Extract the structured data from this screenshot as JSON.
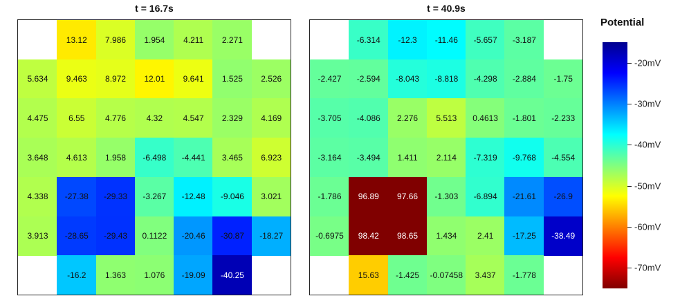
{
  "chart_data": [
    {
      "type": "heatmap",
      "title": "t = 16.7s",
      "rows": 7,
      "cols": 7,
      "values": [
        [
          null,
          13.12,
          7.986,
          1.954,
          4.211,
          2.271,
          null
        ],
        [
          5.634,
          9.463,
          8.972,
          12.01,
          9.641,
          1.525,
          2.526
        ],
        [
          4.475,
          6.55,
          4.776,
          4.32,
          4.547,
          2.329,
          4.169
        ],
        [
          3.648,
          4.613,
          1.958,
          -6.498,
          -4.441,
          3.465,
          6.923
        ],
        [
          4.338,
          -27.38,
          -29.33,
          -3.267,
          -12.48,
          -9.046,
          3.021
        ],
        [
          3.913,
          -28.65,
          -29.43,
          0.1122,
          -20.46,
          -30.87,
          -18.27
        ],
        [
          null,
          -16.2,
          1.363,
          1.076,
          -19.09,
          -40.25,
          null
        ]
      ],
      "labels": [
        [
          "",
          "13.12",
          "7.986",
          "1.954",
          "4.211",
          "2.271",
          ""
        ],
        [
          "5.634",
          "9.463",
          "8.972",
          "12.01",
          "9.641",
          "1.525",
          "2.526"
        ],
        [
          "4.475",
          "6.55",
          "4.776",
          "4.32",
          "4.547",
          "2.329",
          "4.169"
        ],
        [
          "3.648",
          "4.613",
          "1.958",
          "-6.498",
          "-4.441",
          "3.465",
          "6.923"
        ],
        [
          "4.338",
          "-27.38",
          "-29.33",
          "-3.267",
          "-12.48",
          "-9.046",
          "3.021"
        ],
        [
          "3.913",
          "-28.65",
          "-29.43",
          "0.1122",
          "-20.46",
          "-30.87",
          "-18.27"
        ],
        [
          "",
          "-16.2",
          "1.363",
          "1.076",
          "-19.09",
          "-40.25",
          ""
        ]
      ]
    },
    {
      "type": "heatmap",
      "title": "t = 40.9s",
      "rows": 7,
      "cols": 7,
      "values": [
        [
          null,
          -6.314,
          -12.3,
          -11.46,
          -5.657,
          -3.187,
          null
        ],
        [
          -2.427,
          -2.594,
          -8.043,
          -8.818,
          -4.298,
          -2.884,
          -1.75
        ],
        [
          -3.705,
          -4.086,
          2.276,
          5.513,
          0.4613,
          -1.801,
          -2.233
        ],
        [
          -3.164,
          -3.494,
          1.411,
          2.114,
          -7.319,
          -9.768,
          -4.554
        ],
        [
          -1.786,
          96.89,
          97.66,
          -1.303,
          -6.894,
          -21.61,
          -26.9
        ],
        [
          -0.6975,
          98.42,
          98.65,
          1.434,
          2.41,
          -17.25,
          -38.49
        ],
        [
          null,
          15.63,
          -1.425,
          -0.07458,
          3.437,
          -1.778,
          null
        ]
      ],
      "labels": [
        [
          "",
          "-6.314",
          "-12.3",
          "-11.46",
          "-5.657",
          "-3.187",
          ""
        ],
        [
          "-2.427",
          "-2.594",
          "-8.043",
          "-8.818",
          "-4.298",
          "-2.884",
          "-1.75"
        ],
        [
          "-3.705",
          "-4.086",
          "2.276",
          "5.513",
          "0.4613",
          "-1.801",
          "-2.233"
        ],
        [
          "-3.164",
          "-3.494",
          "1.411",
          "2.114",
          "-7.319",
          "-9.768",
          "-4.554"
        ],
        [
          "-1.786",
          "96.89",
          "97.66",
          "-1.303",
          "-6.894",
          "-21.61",
          "-26.9"
        ],
        [
          "-0.6975",
          "98.42",
          "98.65",
          "1.434",
          "2.41",
          "-17.25",
          "-38.49"
        ],
        [
          "",
          "15.63",
          "-1.425",
          "-0.07458",
          "3.437",
          "-1.778",
          ""
        ]
      ]
    }
  ],
  "colorbar": {
    "title": "Potential",
    "colormap": "jet (reversed)",
    "range": [
      -75,
      -15
    ],
    "ticks": [
      {
        "value": -20,
        "label": "-20mV"
      },
      {
        "value": -30,
        "label": "-30mV"
      },
      {
        "value": -40,
        "label": "-40mV"
      },
      {
        "value": -50,
        "label": "-50mV"
      },
      {
        "value": -60,
        "label": "-60mV"
      },
      {
        "value": -70,
        "label": "-70mV"
      }
    ]
  }
}
